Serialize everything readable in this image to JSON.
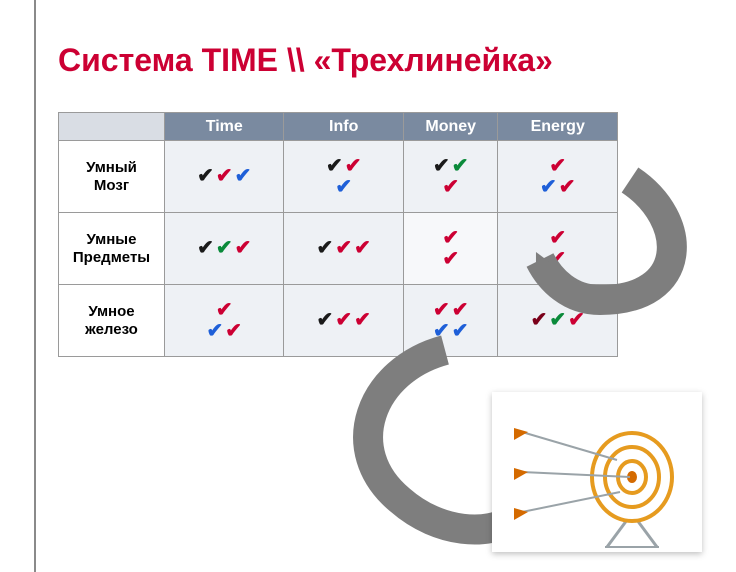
{
  "title": "Система TIME \\\\ «Трехлинейка»",
  "colors": {
    "title": "#cc0033",
    "header_bg": "#7a8aa0",
    "header_fg": "#ffffff",
    "cell_bg": "#eef1f5",
    "cell_bg_light": "#f7f8fa",
    "rowlabel_bg": "#ffffff",
    "border": "#9a9a9a",
    "left_rule": "#8a8a8a",
    "check_black": "#1a1a1a",
    "check_red": "#cc0033",
    "check_blue": "#1e5fd8",
    "check_green": "#0a8a3a",
    "check_darkred": "#7a001a",
    "arrow": "#7e7e7e",
    "target_ring": "#e69b1f",
    "target_center": "#d46a00",
    "arrow_shaft": "#9aa3a8"
  },
  "columns": [
    "Time",
    "Info",
    "Money",
    "Energy"
  ],
  "rows": [
    {
      "label": "Умный Мозг",
      "cells": [
        {
          "lines": [
            [
              "black",
              "red",
              "blue"
            ]
          ]
        },
        {
          "lines": [
            [
              "black",
              "red"
            ],
            [
              "blue"
            ]
          ]
        },
        {
          "lines": [
            [
              "black",
              "green"
            ],
            [
              "red"
            ]
          ]
        },
        {
          "lines": [
            [
              "red"
            ],
            [
              "blue",
              "red"
            ]
          ]
        }
      ]
    },
    {
      "label": "Умные Предметы",
      "cells": [
        {
          "lines": [
            [
              "black",
              "green",
              "red"
            ]
          ]
        },
        {
          "lines": [
            [
              "black",
              "red",
              "red"
            ]
          ]
        },
        {
          "lines": [
            [
              "red"
            ],
            [
              "red"
            ]
          ],
          "light": true
        },
        {
          "lines": [
            [
              "red"
            ],
            [
              "red"
            ]
          ]
        }
      ]
    },
    {
      "label": "Умное железо",
      "cells": [
        {
          "lines": [
            [
              "red"
            ],
            [
              "blue",
              "red"
            ]
          ]
        },
        {
          "lines": [
            [
              "black",
              "red",
              "red"
            ]
          ]
        },
        {
          "lines": [
            [
              "red",
              "red"
            ],
            [
              "blue",
              "blue"
            ]
          ]
        },
        {
          "lines": [
            [
              "darkred",
              "green",
              "red"
            ]
          ]
        }
      ]
    }
  ],
  "check_glyph": "✔"
}
